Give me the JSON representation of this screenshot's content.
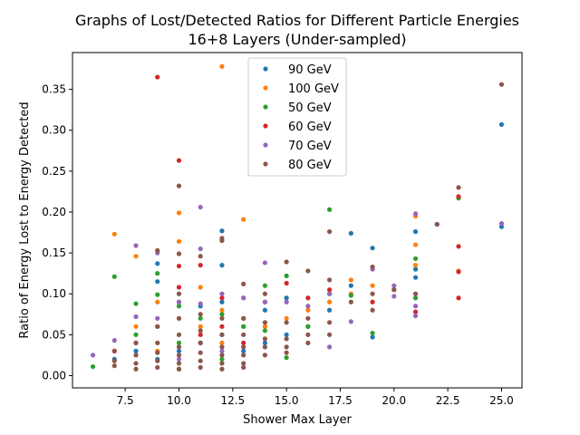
{
  "chart_data": {
    "type": "scatter",
    "title": "Graphs of Lost/Detected Ratios for Different Particle Energies",
    "subtitle": "16+8 Layers (Under-sampled)",
    "xlabel": "Shower Max Layer",
    "ylabel": "Ratio of Energy Lost to Energy Detected",
    "xlim": [
      5.05,
      25.95
    ],
    "ylim": [
      -0.015,
      0.395
    ],
    "xticks": [
      7.5,
      10.0,
      12.5,
      15.0,
      17.5,
      20.0,
      22.5,
      25.0
    ],
    "xtick_labels": [
      "7.5",
      "10.0",
      "12.5",
      "15.0",
      "17.5",
      "20.0",
      "22.5",
      "25.0"
    ],
    "yticks": [
      0.0,
      0.05,
      0.1,
      0.15,
      0.2,
      0.25,
      0.3,
      0.35
    ],
    "ytick_labels": [
      "0.00",
      "0.05",
      "0.10",
      "0.15",
      "0.20",
      "0.25",
      "0.30",
      "0.35"
    ],
    "legend_position": "top-center",
    "series": [
      {
        "name": "90 GeV",
        "color": "#1f77b4",
        "points": [
          [
            25,
            0.307
          ],
          [
            25,
            0.182
          ],
          [
            21,
            0.176
          ],
          [
            21,
            0.13
          ],
          [
            19,
            0.156
          ],
          [
            18,
            0.174
          ],
          [
            18,
            0.11
          ],
          [
            19,
            0.047
          ],
          [
            20,
            0.105
          ],
          [
            17,
            0.1
          ],
          [
            17,
            0.08
          ],
          [
            16,
            0.06
          ],
          [
            15,
            0.095
          ],
          [
            15,
            0.05
          ],
          [
            14,
            0.08
          ],
          [
            14,
            0.04
          ],
          [
            13,
            0.06
          ],
          [
            13,
            0.03
          ],
          [
            12,
            0.177
          ],
          [
            12,
            0.135
          ],
          [
            12,
            0.09
          ],
          [
            12,
            0.05
          ],
          [
            11,
            0.085
          ],
          [
            11,
            0.04
          ],
          [
            10,
            0.09
          ],
          [
            10,
            0.03
          ],
          [
            9,
            0.137
          ],
          [
            9,
            0.115
          ],
          [
            9,
            0.02
          ],
          [
            8,
            0.03
          ],
          [
            7,
            0.02
          ],
          [
            21,
            0.12
          ],
          [
            22,
            0.185
          ]
        ]
      },
      {
        "name": "100 GeV",
        "color": "#ff7f0e",
        "points": [
          [
            12,
            0.378
          ],
          [
            10,
            0.199
          ],
          [
            10,
            0.164
          ],
          [
            13,
            0.191
          ],
          [
            7,
            0.173
          ],
          [
            8,
            0.146
          ],
          [
            9,
            0.09
          ],
          [
            11,
            0.108
          ],
          [
            11,
            0.06
          ],
          [
            10,
            0.07
          ],
          [
            12,
            0.08
          ],
          [
            13,
            0.095
          ],
          [
            14,
            0.06
          ],
          [
            15,
            0.07
          ],
          [
            16,
            0.08
          ],
          [
            17,
            0.09
          ],
          [
            18,
            0.117
          ],
          [
            18,
            0.1
          ],
          [
            19,
            0.11
          ],
          [
            21,
            0.16
          ],
          [
            21,
            0.135
          ],
          [
            21,
            0.195
          ],
          [
            23,
            0.128
          ],
          [
            12,
            0.04
          ],
          [
            8,
            0.06
          ],
          [
            9,
            0.03
          ]
        ]
      },
      {
        "name": "50 GeV",
        "color": "#2ca02c",
        "points": [
          [
            6,
            0.011
          ],
          [
            7,
            0.121
          ],
          [
            8,
            0.088
          ],
          [
            8,
            0.05
          ],
          [
            9,
            0.125
          ],
          [
            9,
            0.099
          ],
          [
            10,
            0.085
          ],
          [
            10,
            0.04
          ],
          [
            11,
            0.07
          ],
          [
            12,
            0.075
          ],
          [
            13,
            0.06
          ],
          [
            14,
            0.11
          ],
          [
            14,
            0.055
          ],
          [
            15,
            0.122
          ],
          [
            15,
            0.022
          ],
          [
            16,
            0.06
          ],
          [
            17,
            0.203
          ],
          [
            17,
            0.1
          ],
          [
            18,
            0.098
          ],
          [
            19,
            0.052
          ],
          [
            21,
            0.143
          ],
          [
            21,
            0.095
          ],
          [
            23,
            0.217
          ],
          [
            10,
            0.008
          ],
          [
            12,
            0.02
          ]
        ]
      },
      {
        "name": "60 GeV",
        "color": "#d62728",
        "points": [
          [
            9,
            0.365
          ],
          [
            10,
            0.263
          ],
          [
            10,
            0.134
          ],
          [
            10,
            0.108
          ],
          [
            11,
            0.135
          ],
          [
            12,
            0.095
          ],
          [
            12,
            0.06
          ],
          [
            13,
            0.07
          ],
          [
            14,
            0.09
          ],
          [
            15,
            0.113
          ],
          [
            16,
            0.095
          ],
          [
            17,
            0.105
          ],
          [
            19,
            0.09
          ],
          [
            21,
            0.078
          ],
          [
            23,
            0.219
          ],
          [
            23,
            0.158
          ],
          [
            23,
            0.127
          ],
          [
            23,
            0.095
          ],
          [
            8,
            0.04
          ],
          [
            7,
            0.03
          ],
          [
            9,
            0.06
          ],
          [
            11,
            0.05
          ],
          [
            13,
            0.04
          ]
        ]
      },
      {
        "name": "70 GeV",
        "color": "#9467bd",
        "points": [
          [
            6,
            0.025
          ],
          [
            7,
            0.043
          ],
          [
            8,
            0.159
          ],
          [
            8,
            0.072
          ],
          [
            9,
            0.15
          ],
          [
            9,
            0.07
          ],
          [
            10,
            0.09
          ],
          [
            11,
            0.206
          ],
          [
            11,
            0.155
          ],
          [
            11,
            0.088
          ],
          [
            12,
            0.1
          ],
          [
            13,
            0.095
          ],
          [
            14,
            0.138
          ],
          [
            14,
            0.09
          ],
          [
            15,
            0.09
          ],
          [
            16,
            0.085
          ],
          [
            17,
            0.1
          ],
          [
            17,
            0.035
          ],
          [
            18,
            0.066
          ],
          [
            19,
            0.13
          ],
          [
            20,
            0.11
          ],
          [
            20,
            0.097
          ],
          [
            21,
            0.198
          ],
          [
            21,
            0.085
          ],
          [
            21,
            0.073
          ],
          [
            25,
            0.186
          ],
          [
            12,
            0.03
          ],
          [
            10,
            0.02
          ]
        ]
      },
      {
        "name": "80 GeV",
        "color": "#8c564b",
        "points": [
          [
            25,
            0.356
          ],
          [
            10,
            0.232
          ],
          [
            10,
            0.149
          ],
          [
            9,
            0.153
          ],
          [
            11,
            0.146
          ],
          [
            12,
            0.168
          ],
          [
            12,
            0.165
          ],
          [
            13,
            0.112
          ],
          [
            14,
            0.1
          ],
          [
            15,
            0.139
          ],
          [
            16,
            0.128
          ],
          [
            17,
            0.176
          ],
          [
            17,
            0.117
          ],
          [
            19,
            0.133
          ],
          [
            21,
            0.1
          ],
          [
            22,
            0.185
          ],
          [
            23,
            0.23
          ],
          [
            10,
            0.1
          ],
          [
            10,
            0.07
          ],
          [
            10,
            0.05
          ],
          [
            10,
            0.035
          ],
          [
            10,
            0.025
          ],
          [
            10,
            0.015
          ],
          [
            10,
            0.008
          ],
          [
            11,
            0.075
          ],
          [
            11,
            0.055
          ],
          [
            11,
            0.04
          ],
          [
            11,
            0.028
          ],
          [
            11,
            0.018
          ],
          [
            11,
            0.01
          ],
          [
            12,
            0.07
          ],
          [
            12,
            0.05
          ],
          [
            12,
            0.035
          ],
          [
            12,
            0.025
          ],
          [
            12,
            0.015
          ],
          [
            12,
            0.008
          ],
          [
            13,
            0.07
          ],
          [
            13,
            0.05
          ],
          [
            13,
            0.035
          ],
          [
            13,
            0.025
          ],
          [
            13,
            0.015
          ],
          [
            13,
            0.01
          ],
          [
            14,
            0.065
          ],
          [
            14,
            0.045
          ],
          [
            14,
            0.035
          ],
          [
            14,
            0.025
          ],
          [
            15,
            0.065
          ],
          [
            15,
            0.045
          ],
          [
            15,
            0.035
          ],
          [
            15,
            0.028
          ],
          [
            9,
            0.06
          ],
          [
            9,
            0.04
          ],
          [
            9,
            0.028
          ],
          [
            9,
            0.018
          ],
          [
            9,
            0.01
          ],
          [
            8,
            0.04
          ],
          [
            8,
            0.025
          ],
          [
            8,
            0.015
          ],
          [
            8,
            0.008
          ],
          [
            7,
            0.03
          ],
          [
            7,
            0.018
          ],
          [
            7,
            0.012
          ],
          [
            16,
            0.07
          ],
          [
            16,
            0.05
          ],
          [
            16,
            0.04
          ],
          [
            17,
            0.065
          ],
          [
            17,
            0.05
          ],
          [
            18,
            0.09
          ],
          [
            19,
            0.1
          ],
          [
            19,
            0.08
          ],
          [
            20,
            0.105
          ]
        ]
      }
    ]
  }
}
